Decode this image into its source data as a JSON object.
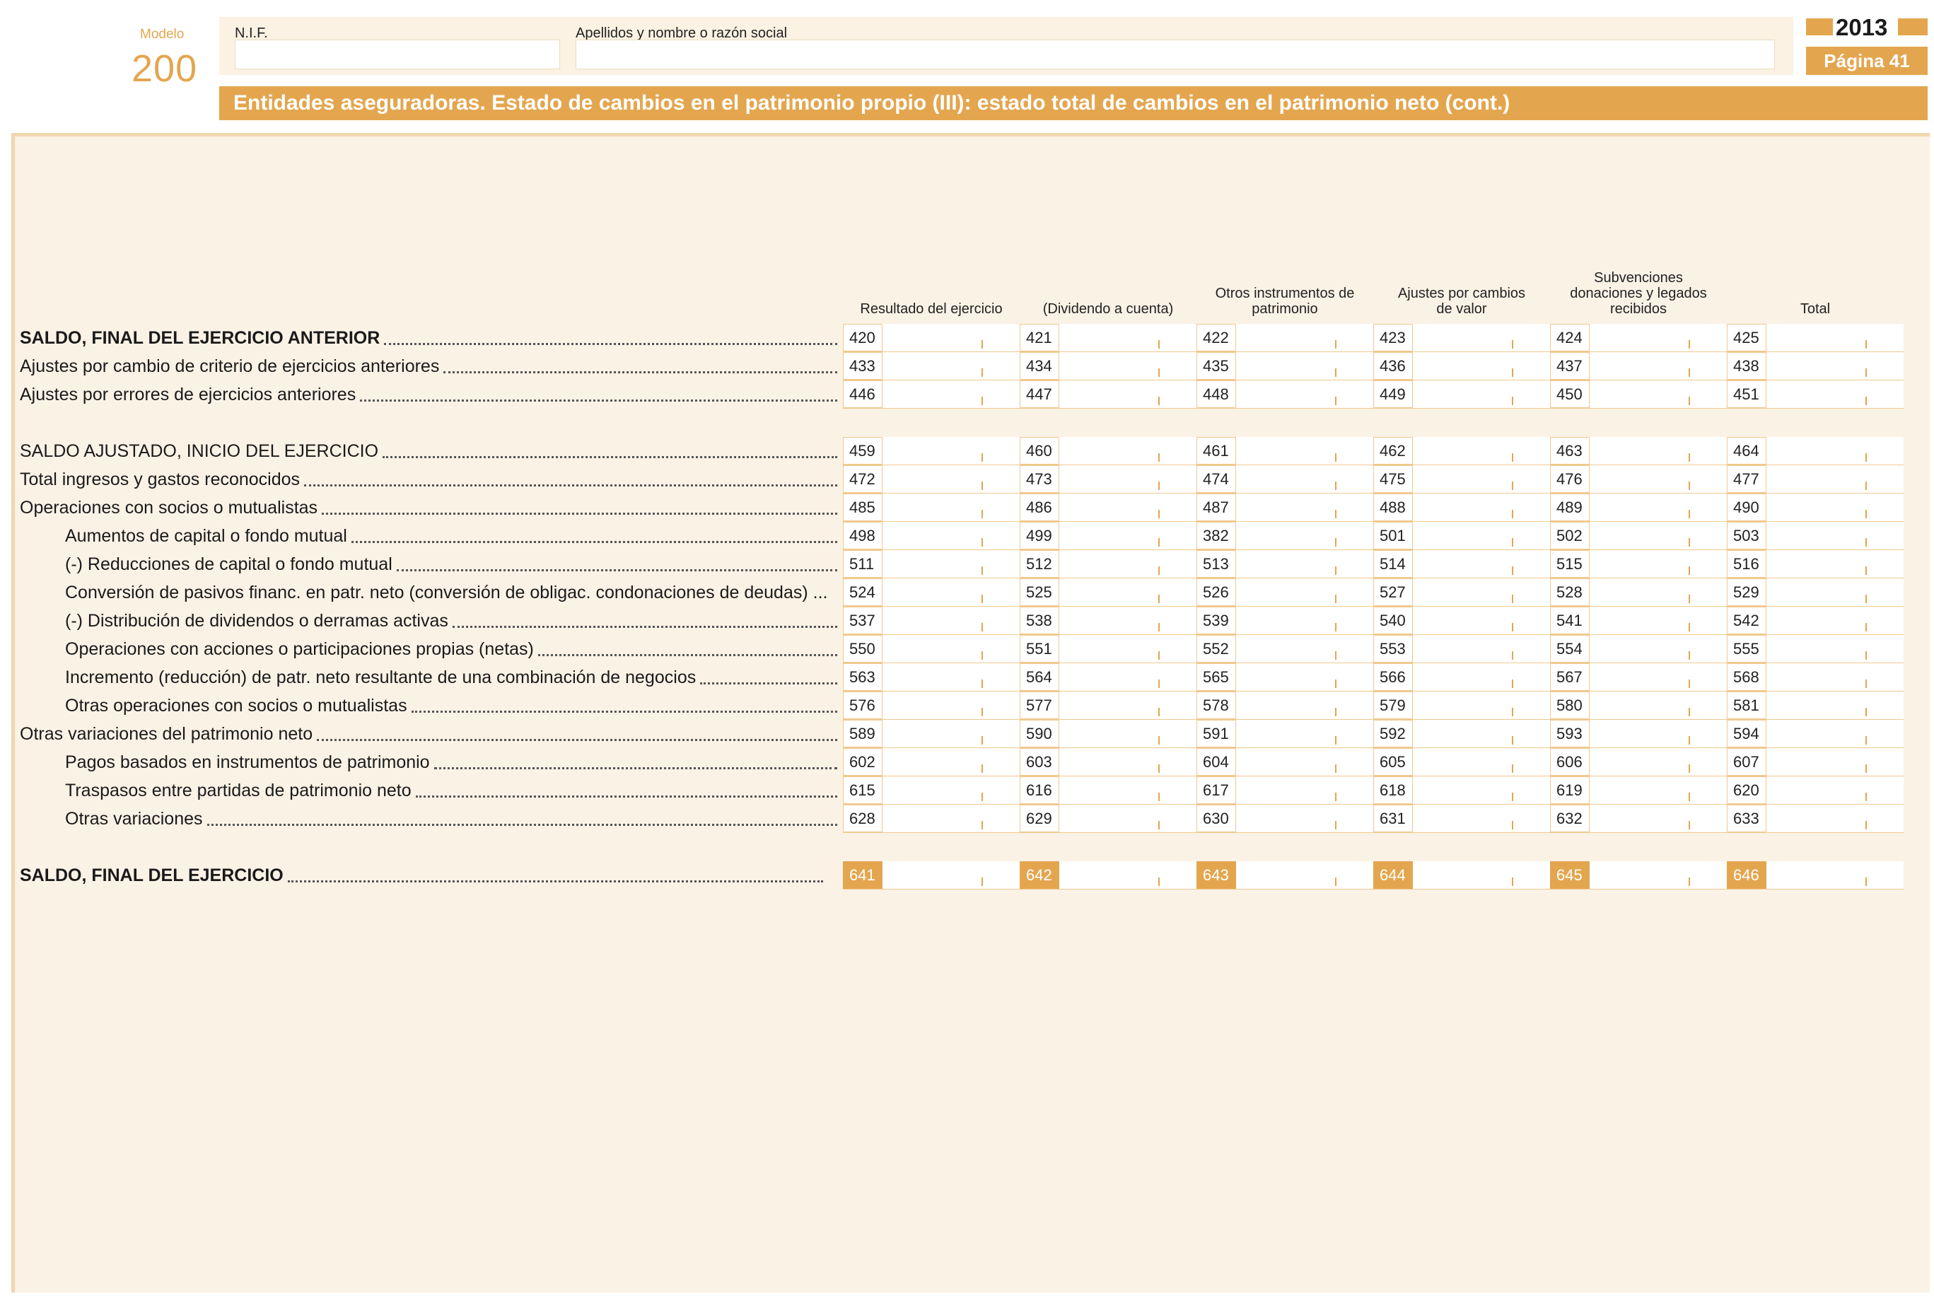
{
  "header": {
    "modelo_label": "Modelo",
    "modelo_number": "200",
    "nif_label": "N.I.F.",
    "name_label": "Apellidos y nombre o razón social",
    "year": "2013",
    "page": "Página 41",
    "title": "Entidades aseguradoras. Estado de cambios en el patrimonio propio (III): estado total de cambios en el patrimonio neto (cont.)"
  },
  "columns": [
    {
      "lines": [
        "Resultado del ejercicio"
      ]
    },
    {
      "lines": [
        "(Dividendo a cuenta)"
      ]
    },
    {
      "lines": [
        "Otros instrumentos de",
        "patrimonio"
      ]
    },
    {
      "lines": [
        "Ajustes por cambios",
        "de valor"
      ]
    },
    {
      "lines": [
        "Subvenciones",
        "donaciones y legados",
        "recibidos"
      ]
    },
    {
      "lines": [
        "Total"
      ]
    }
  ],
  "rows": [
    {
      "label": "SALDO, FINAL DEL EJERCICIO ANTERIOR",
      "codes": [
        "420",
        "421",
        "422",
        "423",
        "424",
        "425"
      ]
    },
    {
      "label": "Ajustes por cambio de criterio de ejercicios anteriores",
      "codes": [
        "433",
        "434",
        "435",
        "436",
        "437",
        "438"
      ]
    },
    {
      "label": "Ajustes por errores de ejercicios anteriores",
      "codes": [
        "446",
        "447",
        "448",
        "449",
        "450",
        "451"
      ]
    },
    {
      "label": "SALDO AJUSTADO, INICIO DEL EJERCICIO",
      "codes": [
        "459",
        "460",
        "461",
        "462",
        "463",
        "464"
      ]
    },
    {
      "label": "Total ingresos y gastos reconocidos",
      "codes": [
        "472",
        "473",
        "474",
        "475",
        "476",
        "477"
      ]
    },
    {
      "label": "Operaciones con socios o mutualistas",
      "codes": [
        "485",
        "486",
        "487",
        "488",
        "489",
        "490"
      ]
    },
    {
      "label": "Aumentos de capital o fondo mutual",
      "codes": [
        "498",
        "499",
        "382",
        "501",
        "502",
        "503"
      ]
    },
    {
      "label": "(-) Reducciones de capital o fondo mutual",
      "codes": [
        "511",
        "512",
        "513",
        "514",
        "515",
        "516"
      ]
    },
    {
      "label": "Conversión de pasivos financ. en patr. neto (conversión de obligac. condonaciones de deudas) ...",
      "codes": [
        "524",
        "525",
        "526",
        "527",
        "528",
        "529"
      ]
    },
    {
      "label": "(-) Distribución de dividendos o derramas activas",
      "codes": [
        "537",
        "538",
        "539",
        "540",
        "541",
        "542"
      ]
    },
    {
      "label": "Operaciones con acciones o participaciones propias (netas)",
      "codes": [
        "550",
        "551",
        "552",
        "553",
        "554",
        "555"
      ]
    },
    {
      "label": "Incremento (reducción) de patr. neto resultante de una combinación de negocios",
      "codes": [
        "563",
        "564",
        "565",
        "566",
        "567",
        "568"
      ]
    },
    {
      "label": "Otras operaciones con socios o mutualistas",
      "codes": [
        "576",
        "577",
        "578",
        "579",
        "580",
        "581"
      ]
    },
    {
      "label": "Otras variaciones del patrimonio neto",
      "codes": [
        "589",
        "590",
        "591",
        "592",
        "593",
        "594"
      ]
    },
    {
      "label": "Pagos basados en instrumentos de patrimonio",
      "codes": [
        "602",
        "603",
        "604",
        "605",
        "606",
        "607"
      ]
    },
    {
      "label": "Traspasos entre partidas de patrimonio neto",
      "codes": [
        "615",
        "616",
        "617",
        "618",
        "619",
        "620"
      ]
    },
    {
      "label": "Otras variaciones",
      "codes": [
        "628",
        "629",
        "630",
        "631",
        "632",
        "633"
      ]
    },
    {
      "label": "SALDO, FINAL DEL EJERCICIO",
      "codes": [
        "641",
        "642",
        "643",
        "644",
        "645",
        "646"
      ]
    }
  ]
}
